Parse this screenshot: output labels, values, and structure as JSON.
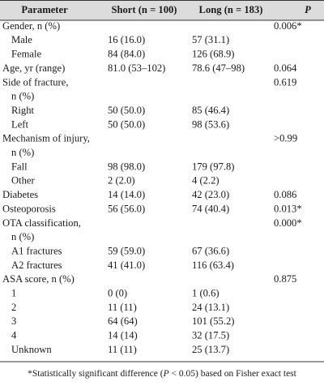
{
  "table": {
    "header": [
      "Parameter",
      "Short (n = 100)",
      "Long (n = 183)",
      "P"
    ],
    "groups": [
      {
        "label": [
          "Gender, n (%)"
        ],
        "p": "0.006*",
        "items": [
          [
            "Male",
            "16 (16.0)",
            "57 (31.1)"
          ],
          [
            "Female",
            "84 (84.0)",
            "126 (68.9)"
          ]
        ]
      },
      {
        "label": [
          "Age, yr (range)"
        ],
        "short": "81.0 (53–102)",
        "long": "78.6 (47–98)",
        "p": "0.064"
      },
      {
        "label": [
          "Side of fracture,",
          "n (%)"
        ],
        "p": "0.619",
        "items": [
          [
            "Right",
            "50 (50.0)",
            "85 (46.4)"
          ],
          [
            "Left",
            "50 (50.0)",
            "98 (53.6)"
          ]
        ]
      },
      {
        "label": [
          "Mechanism of injury,",
          "n (%)"
        ],
        "p": ">0.99",
        "items": [
          [
            "Fall",
            "98 (98.0)",
            "179 (97.8)"
          ],
          [
            "Other",
            "2 (2.0)",
            "4 (2.2)"
          ]
        ]
      },
      {
        "label": [
          "Diabetes"
        ],
        "short": "14 (14.0)",
        "long": "42 (23.0)",
        "p": "0.086"
      },
      {
        "label": [
          "Osteoporosis"
        ],
        "short": "56 (56.0)",
        "long": "74 (40.4)",
        "p": "0.013*"
      },
      {
        "label": [
          "OTA classification,",
          "n (%)"
        ],
        "p": "0.000*",
        "items": [
          [
            "A1 fractures",
            "59 (59.0)",
            "67 (36.6)"
          ],
          [
            "A2 fractures",
            "41 (41.0)",
            "116 (63.4)"
          ]
        ]
      },
      {
        "label": [
          "ASA score, n (%)"
        ],
        "p": "0.875",
        "items": [
          [
            "1",
            "0 (0)",
            "1 (0.6)"
          ],
          [
            "2",
            "11 (11)",
            "24 (13.1)"
          ],
          [
            "3",
            "64 (64)",
            "101 (55.2)"
          ],
          [
            "4",
            "14 (14)",
            "32 (17.5)"
          ],
          [
            "Unknown",
            "11 (11)",
            "25 (13.7)"
          ]
        ]
      }
    ],
    "footnote": [
      "*Statistically significant difference (",
      "P",
      " < 0.05) based on Fisher exact test"
    ]
  }
}
